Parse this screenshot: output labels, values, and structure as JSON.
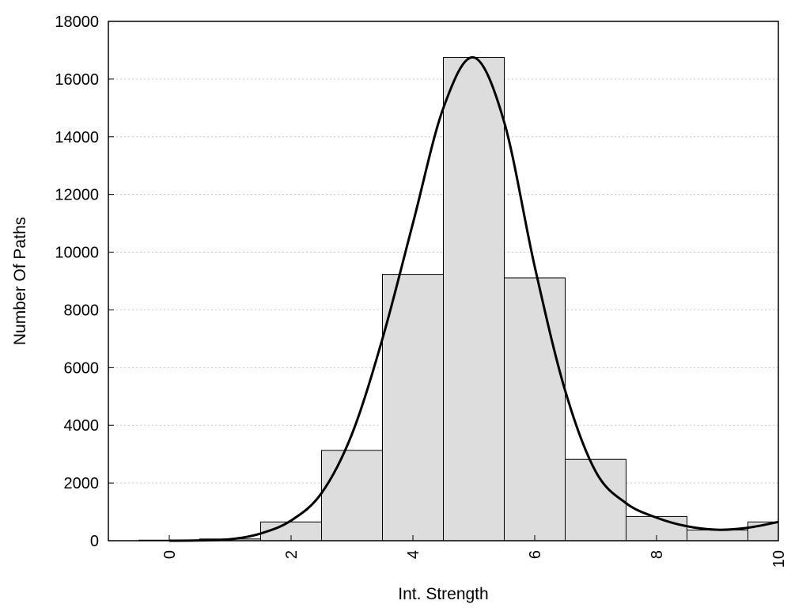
{
  "chart_data": {
    "type": "bar",
    "title": "",
    "xlabel": "Int. Strength",
    "ylabel": "Number Of Paths",
    "xlim": [
      -1,
      10
    ],
    "ylim": [
      0,
      18000
    ],
    "xticks": [
      0,
      2,
      4,
      6,
      8,
      10
    ],
    "yticks": [
      0,
      2000,
      4000,
      6000,
      8000,
      10000,
      12000,
      14000,
      16000,
      18000
    ],
    "grid": "horizontal dotted",
    "bar_color": "#dddddd",
    "bar_edge_color": "#000000",
    "curve_color": "#000000",
    "bins": {
      "centers": [
        0,
        1,
        2,
        3,
        4,
        5,
        6,
        7,
        8,
        9,
        10
      ],
      "values": [
        20,
        60,
        650,
        3130,
        9230,
        16750,
        9110,
        2820,
        840,
        370,
        650
      ]
    },
    "curve": {
      "x": [
        0,
        0.5,
        1,
        1.5,
        2,
        2.5,
        3,
        3.5,
        4,
        4.5,
        5,
        5.5,
        6,
        6.5,
        7,
        7.5,
        8,
        8.5,
        9,
        9.5,
        10
      ],
      "y": [
        0,
        10,
        50,
        250,
        700,
        1650,
        3700,
        7000,
        11000,
        15000,
        16750,
        14500,
        9500,
        5200,
        2400,
        1300,
        800,
        500,
        380,
        450,
        650
      ]
    }
  }
}
